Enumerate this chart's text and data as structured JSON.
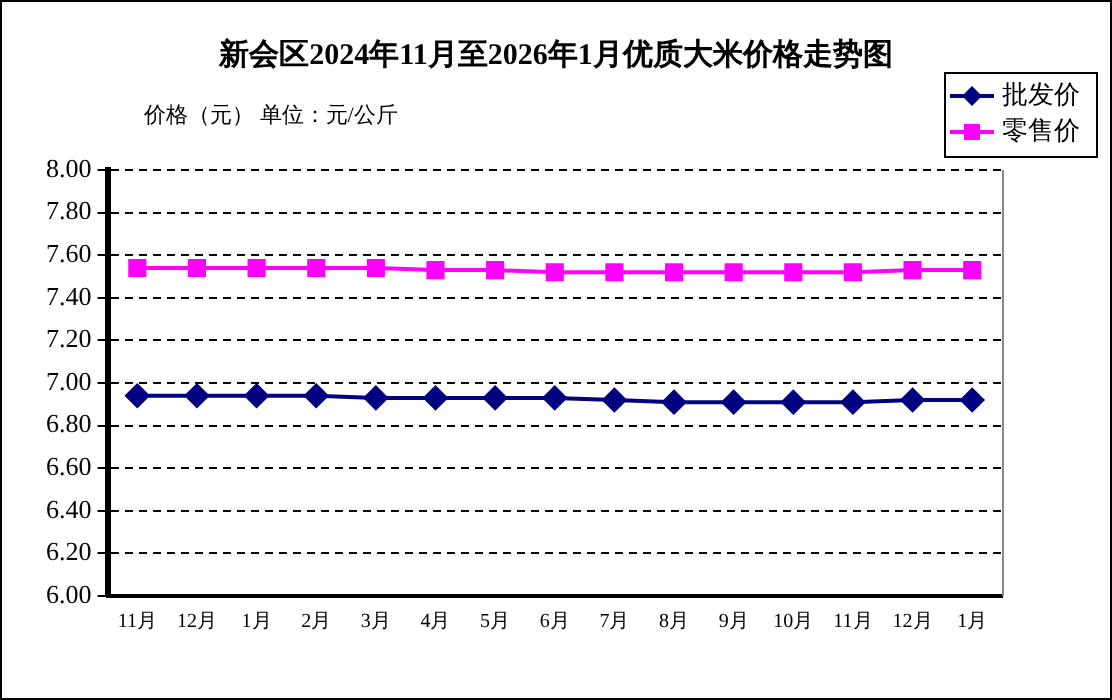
{
  "chart_data": {
    "type": "line",
    "title": "新会区2024年11月至2026年1月优质大米价格走势图",
    "annotations": [
      "价格（元） 单位：元/公斤"
    ],
    "categories": [
      "11月",
      "12月",
      "1月",
      "2月",
      "3月",
      "4月",
      "5月",
      "6月",
      "7月",
      "8月",
      "9月",
      "10月",
      "11月",
      "12月",
      "1月"
    ],
    "series": [
      {
        "name": "批发价",
        "color": "#000080",
        "marker": "diamond",
        "values": [
          6.94,
          6.94,
          6.94,
          6.94,
          6.93,
          6.93,
          6.93,
          6.93,
          6.92,
          6.91,
          6.91,
          6.91,
          6.91,
          6.92,
          6.92
        ]
      },
      {
        "name": "零售价",
        "color": "#ff00ff",
        "marker": "square",
        "values": [
          7.54,
          7.54,
          7.54,
          7.54,
          7.54,
          7.53,
          7.53,
          7.52,
          7.52,
          7.52,
          7.52,
          7.52,
          7.52,
          7.53,
          7.53
        ]
      }
    ],
    "ylim": [
      6,
      8
    ],
    "yticks": [
      {
        "value": 6,
        "label": "6.00"
      },
      {
        "value": 6.2,
        "label": "6.20"
      },
      {
        "value": 6.4,
        "label": "6.40"
      },
      {
        "value": 6.6,
        "label": "6.60"
      },
      {
        "value": 6.8,
        "label": "6.80"
      },
      {
        "value": 7,
        "label": "7.00"
      },
      {
        "value": 7.2,
        "label": "7.20"
      },
      {
        "value": 7.4,
        "label": "7.40"
      },
      {
        "value": 7.6,
        "label": "7.60"
      },
      {
        "value": 7.8,
        "label": "7.80"
      },
      {
        "value": 8,
        "label": "8.00"
      }
    ],
    "grid": "y",
    "legend": "top right",
    "line_style": "solid"
  }
}
